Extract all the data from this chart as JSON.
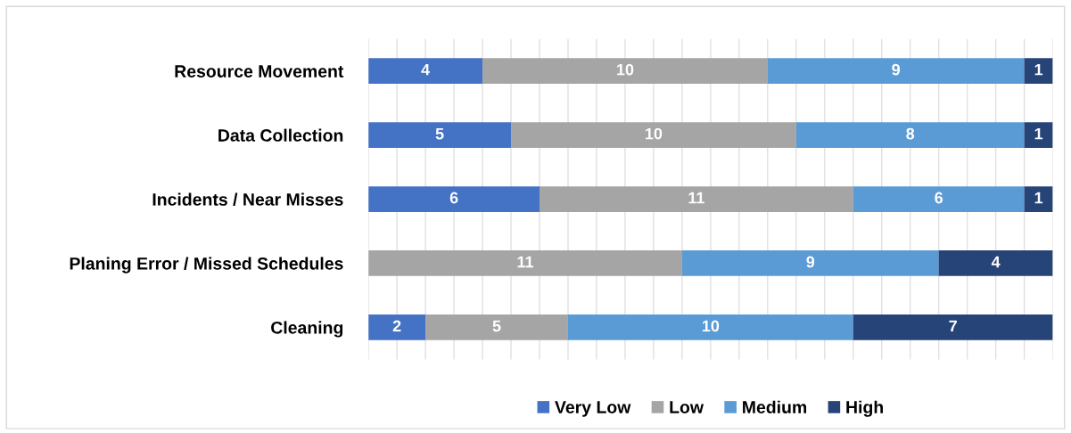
{
  "chart_data": {
    "type": "bar",
    "orientation": "horizontal",
    "stacked": true,
    "data_labels": true,
    "grid": "x",
    "legend": "bottom",
    "categories": [
      "Resource Movement",
      "Data Collection",
      "Incidents / Near Misses",
      "Planing Error / Missed Schedules",
      "Cleaning"
    ],
    "series": [
      {
        "name": "Very Low",
        "color": "#4472c4",
        "values": [
          4,
          5,
          6,
          null,
          2
        ]
      },
      {
        "name": "Low",
        "color": "#a5a5a5",
        "values": [
          10,
          10,
          11,
          11,
          5
        ]
      },
      {
        "name": "Medium",
        "color": "#5b9bd5",
        "values": [
          9,
          8,
          6,
          9,
          10
        ]
      },
      {
        "name": "High",
        "color": "#264478",
        "values": [
          1,
          1,
          1,
          4,
          7
        ]
      }
    ]
  }
}
